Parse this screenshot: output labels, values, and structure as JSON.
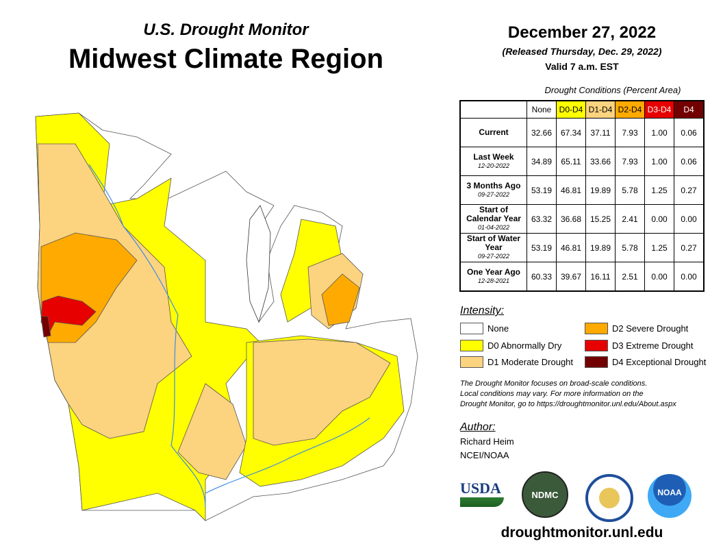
{
  "header": {
    "subtitle": "U.S. Drought Monitor",
    "title": "Midwest Climate Region",
    "date": "December 27, 2022",
    "released": "(Released Thursday, Dec. 29, 2022)",
    "valid": "Valid 7 a.m. EST"
  },
  "table": {
    "caption": "Drought Conditions (Percent Area)",
    "columns": [
      {
        "label": "None",
        "bg": "#ffffff",
        "fg": "#000000"
      },
      {
        "label": "D0-D4",
        "bg": "#ffff00",
        "fg": "#000000"
      },
      {
        "label": "D1-D4",
        "bg": "#fcd37f",
        "fg": "#000000"
      },
      {
        "label": "D2-D4",
        "bg": "#ffaa00",
        "fg": "#000000"
      },
      {
        "label": "D3-D4",
        "bg": "#e60000",
        "fg": "#ffffff"
      },
      {
        "label": "D4",
        "bg": "#730000",
        "fg": "#ffffff"
      }
    ],
    "rows": [
      {
        "label": "Current",
        "date": "",
        "values": [
          "32.66",
          "67.34",
          "37.11",
          "7.93",
          "1.00",
          "0.06"
        ]
      },
      {
        "label": "Last Week",
        "date": "12-20-2022",
        "values": [
          "34.89",
          "65.11",
          "33.66",
          "7.93",
          "1.00",
          "0.06"
        ]
      },
      {
        "label": "3 Months Ago",
        "date": "09-27-2022",
        "values": [
          "53.19",
          "46.81",
          "19.89",
          "5.78",
          "1.25",
          "0.27"
        ]
      },
      {
        "label": "Start of Calendar Year",
        "date": "01-04-2022",
        "values": [
          "63.32",
          "36.68",
          "15.25",
          "2.41",
          "0.00",
          "0.00"
        ]
      },
      {
        "label": "Start of Water Year",
        "date": "09-27-2022",
        "values": [
          "53.19",
          "46.81",
          "19.89",
          "5.78",
          "1.25",
          "0.27"
        ]
      },
      {
        "label": "One Year Ago",
        "date": "12-28-2021",
        "values": [
          "60.33",
          "39.67",
          "16.11",
          "2.51",
          "0.00",
          "0.00"
        ]
      }
    ]
  },
  "legend": {
    "title": "Intensity:",
    "items": [
      {
        "label": "None",
        "color": "#ffffff"
      },
      {
        "label": "D0 Abnormally Dry",
        "color": "#ffff00"
      },
      {
        "label": "D1 Moderate Drought",
        "color": "#fcd37f"
      },
      {
        "label": "D2 Severe Drought",
        "color": "#ffaa00"
      },
      {
        "label": "D3 Extreme Drought",
        "color": "#e60000"
      },
      {
        "label": "D4 Exceptional Drought",
        "color": "#730000"
      }
    ]
  },
  "note": [
    "The Drought Monitor focuses on broad-scale conditions.",
    "Local conditions may vary. For more information on the",
    "Drought Monitor, go to https://droughtmonitor.unl.edu/About.aspx"
  ],
  "author": {
    "label": "Author:",
    "name": "Richard Heim",
    "org": "NCEI/NOAA"
  },
  "logos": {
    "usda": "USDA",
    "ndmc": "NDMC",
    "noaa": "NOAA"
  },
  "footer_url": "droughtmonitor.unl.edu"
}
